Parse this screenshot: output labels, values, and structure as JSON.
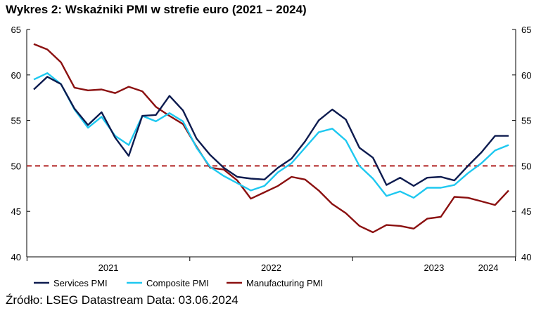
{
  "title": "Wykres 2: Wskaźniki PMI w strefie euro (2021 – 2024)",
  "source": "Źródło: LSEG Datastream Data: 03.06.2024",
  "chart_data": {
    "type": "line",
    "title": "Wykres 2: Wskaźniki PMI w strefie euro (2021 – 2024)",
    "xlabel": "",
    "ylabel": "",
    "x_start": "2021-01",
    "x_end": "2024-05",
    "x_tick_labels": [
      "2021",
      "2022",
      "2023",
      "2024"
    ],
    "ylim": [
      40,
      65
    ],
    "y_ticks": [
      40,
      45,
      50,
      55,
      60,
      65
    ],
    "y_axes": "left and right",
    "grid": false,
    "legend_position": "bottom",
    "reference_line": {
      "value": 50,
      "style": "dashed",
      "color": "#b02020"
    },
    "series": [
      {
        "name": "Services PMI",
        "color": "#0d1b4f",
        "values": [
          58.4,
          59.8,
          59.0,
          56.3,
          54.5,
          55.9,
          53.1,
          51.1,
          55.5,
          55.6,
          57.7,
          56.1,
          53.0,
          51.2,
          49.8,
          48.8,
          48.6,
          48.5,
          49.8,
          50.8,
          52.7,
          55.0,
          56.2,
          55.1,
          52.0,
          50.9,
          47.9,
          48.7,
          47.8,
          48.7,
          48.8,
          48.4,
          50.0,
          51.5,
          53.3,
          53.3
        ]
      },
      {
        "name": "Composite PMI",
        "color": "#1ec8f0",
        "values": [
          59.5,
          60.2,
          59.0,
          56.2,
          54.2,
          55.4,
          53.3,
          52.3,
          55.5,
          54.9,
          55.8,
          54.9,
          52.0,
          49.9,
          48.9,
          48.1,
          47.3,
          47.8,
          49.3,
          50.3,
          52.0,
          53.7,
          54.1,
          52.8,
          50.0,
          48.6,
          46.7,
          47.2,
          46.5,
          47.6,
          47.6,
          47.9,
          49.2,
          50.3,
          51.7,
          52.3
        ]
      },
      {
        "name": "Manufacturing PMI",
        "color": "#8b1010",
        "values": [
          63.4,
          62.8,
          61.4,
          58.6,
          58.3,
          58.4,
          58.0,
          58.7,
          58.2,
          56.5,
          55.5,
          54.6,
          52.1,
          49.8,
          49.6,
          48.4,
          46.4,
          47.1,
          47.8,
          48.8,
          48.5,
          47.3,
          45.8,
          44.8,
          43.4,
          42.7,
          43.5,
          43.4,
          43.1,
          44.2,
          44.4,
          46.6,
          46.5,
          46.1,
          45.7,
          47.3
        ]
      }
    ]
  }
}
